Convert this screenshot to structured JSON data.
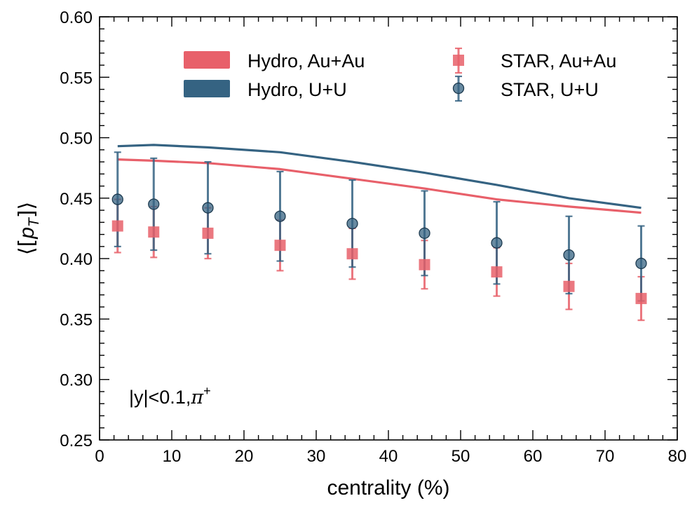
{
  "chart_data": {
    "type": "line",
    "xlabel": "centrality (%)",
    "ylabel_symbol": "p",
    "ylabel_subscript": "T",
    "xlim": [
      0,
      80
    ],
    "ylim": [
      0.25,
      0.6
    ],
    "xticks": [
      0,
      10,
      20,
      30,
      40,
      50,
      60,
      70,
      80
    ],
    "xtick_labels": [
      "0",
      "10",
      "20",
      "30",
      "40",
      "50",
      "60",
      "70",
      "80"
    ],
    "yticks": [
      0.25,
      0.3,
      0.35,
      0.4,
      0.45,
      0.5,
      0.55,
      0.6
    ],
    "ytick_labels": [
      "0.25",
      "0.30",
      "0.35",
      "0.40",
      "0.45",
      "0.50",
      "0.55",
      "0.60"
    ],
    "annotation_text": "|y|<0.1,",
    "annotation_particle": "π",
    "annotation_charge": "+",
    "colors": {
      "auau": "#e8606a",
      "uu": "#356382"
    },
    "series": [
      {
        "name": "Hydro, Au+Au",
        "kind": "line",
        "color_key": "auau",
        "x": [
          2.5,
          7.5,
          15,
          25,
          35,
          45,
          55,
          65,
          75
        ],
        "y": [
          0.482,
          0.481,
          0.479,
          0.474,
          0.466,
          0.458,
          0.449,
          0.443,
          0.438
        ]
      },
      {
        "name": "Hydro, U+U",
        "kind": "line",
        "color_key": "uu",
        "x": [
          2.5,
          7.5,
          15,
          25,
          35,
          45,
          55,
          65,
          75
        ],
        "y": [
          0.493,
          0.494,
          0.492,
          0.488,
          0.48,
          0.471,
          0.461,
          0.45,
          0.442
        ]
      },
      {
        "name": "STAR, Au+Au",
        "kind": "points",
        "marker": "square",
        "color_key": "auau",
        "x": [
          2.5,
          7.5,
          15,
          25,
          35,
          45,
          55,
          65,
          75
        ],
        "y": [
          0.427,
          0.422,
          0.421,
          0.411,
          0.404,
          0.395,
          0.389,
          0.377,
          0.367
        ],
        "yerr": [
          0.022,
          0.021,
          0.021,
          0.021,
          0.021,
          0.02,
          0.02,
          0.019,
          0.018
        ]
      },
      {
        "name": "STAR, U+U",
        "kind": "points",
        "marker": "circle",
        "color_key": "uu",
        "x": [
          2.5,
          7.5,
          15,
          25,
          35,
          45,
          55,
          65,
          75
        ],
        "y": [
          0.449,
          0.445,
          0.442,
          0.435,
          0.429,
          0.421,
          0.413,
          0.403,
          0.396
        ],
        "yerr": [
          0.039,
          0.038,
          0.038,
          0.037,
          0.036,
          0.035,
          0.034,
          0.032,
          0.031
        ]
      }
    ],
    "legend": {
      "placement": "top",
      "columns": [
        [
          "Hydro, Au+Au",
          "Hydro, U+U"
        ],
        [
          "STAR, Au+Au",
          "STAR, U+U"
        ]
      ]
    }
  }
}
